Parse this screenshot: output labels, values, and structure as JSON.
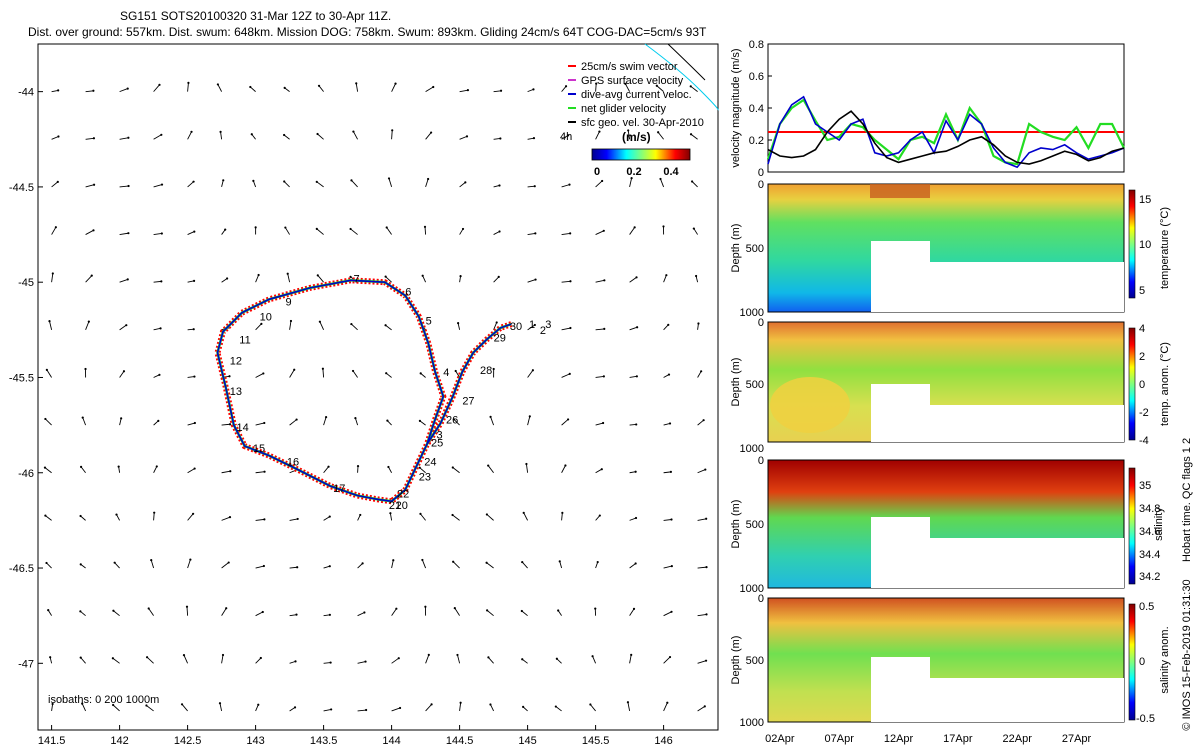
{
  "header": {
    "line1": "SG151 SOTS20100320 31-Mar 12Z to 30-Apr 11Z.",
    "line2": "Dist. over ground: 557km. Dist. swum: 648km. Mission DOG: 758km. Swum: 893km. Gliding 24cm/s 64T COG-DAC=5cm/s 93T"
  },
  "colors": {
    "swim": "#ff0000",
    "gps": "#cc33cc",
    "dac": "#0000cc",
    "net": "#22dd22",
    "geo": "#000000",
    "contour": "#00ccee",
    "redline": "#ff0000"
  },
  "chart_data": [
    {
      "type": "scatter",
      "name": "map",
      "xlim": [
        141.4,
        146.4
      ],
      "ylim": [
        -47.35,
        -43.75
      ],
      "x_ticks": [
        141.5,
        142,
        142.5,
        143,
        143.5,
        144,
        144.5,
        145,
        145.5,
        146
      ],
      "x_tick_labels": [
        "141.5",
        "142",
        "142.5",
        "143",
        "143.5",
        "144",
        "144.5",
        "145",
        "145.5",
        "146"
      ],
      "y_ticks": [
        -44,
        -44.5,
        -45,
        -45.5,
        -46,
        -46.5,
        -47
      ],
      "y_tick_labels": [
        "-44",
        "-44.5",
        "-45",
        "-45.5",
        "-46",
        "-46.5",
        "-47"
      ],
      "legend": [
        {
          "label": "25cm/s swim vector",
          "color": "#ff0000"
        },
        {
          "label": "GPS surface velocity",
          "color": "#cc33cc"
        },
        {
          "label": "dive-avg current veloc.",
          "color": "#0000cc"
        },
        {
          "label": "net glider velocity",
          "color": "#22dd22"
        },
        {
          "label": "sfc geo. vel. 30-Apr-2010",
          "color": "#000000"
        }
      ],
      "legend_extra": "4h",
      "colorbar": {
        "title": "(m/s)",
        "ticks": [
          "0",
          "0.2",
          "0.4"
        ],
        "range": [
          0,
          0.5
        ]
      },
      "isobath_label": "isobaths: 0   200  1000m",
      "track": [
        [
          144.88,
          -45.22
        ],
        [
          144.8,
          -45.24
        ],
        [
          144.7,
          -45.3
        ],
        [
          144.6,
          -45.37
        ],
        [
          144.52,
          -45.47
        ],
        [
          144.45,
          -45.6
        ],
        [
          144.36,
          -45.74
        ],
        [
          144.26,
          -45.85
        ],
        [
          144.18,
          -45.97
        ],
        [
          144.1,
          -46.09
        ],
        [
          144.0,
          -46.15
        ],
        [
          143.9,
          -46.14
        ],
        [
          143.75,
          -46.12
        ],
        [
          143.55,
          -46.07
        ],
        [
          143.3,
          -45.98
        ],
        [
          143.1,
          -45.91
        ],
        [
          142.92,
          -45.86
        ],
        [
          142.84,
          -45.75
        ],
        [
          142.78,
          -45.55
        ],
        [
          142.72,
          -45.37
        ],
        [
          142.76,
          -45.26
        ],
        [
          142.9,
          -45.16
        ],
        [
          143.1,
          -45.09
        ],
        [
          143.4,
          -45.03
        ],
        [
          143.7,
          -44.99
        ],
        [
          143.95,
          -45.0
        ],
        [
          144.1,
          -45.07
        ],
        [
          144.2,
          -45.18
        ],
        [
          144.27,
          -45.32
        ],
        [
          144.32,
          -45.47
        ],
        [
          144.38,
          -45.6
        ],
        [
          144.32,
          -45.72
        ],
        [
          144.26,
          -45.85
        ]
      ],
      "day_labels": [
        {
          "label": "1",
          "x": 145.01,
          "y": -45.22
        },
        {
          "label": "2",
          "x": 145.09,
          "y": -45.25
        },
        {
          "label": "3",
          "x": 145.13,
          "y": -45.22
        },
        {
          "label": "4",
          "x": 144.38,
          "y": -45.47
        },
        {
          "label": "5",
          "x": 144.25,
          "y": -45.2
        },
        {
          "label": "6",
          "x": 144.1,
          "y": -45.05
        },
        {
          "label": "7",
          "x": 143.72,
          "y": -44.98
        },
        {
          "label": "9",
          "x": 143.22,
          "y": -45.1
        },
        {
          "label": "10",
          "x": 143.03,
          "y": -45.18
        },
        {
          "label": "11",
          "x": 142.88,
          "y": -45.3
        },
        {
          "label": "12",
          "x": 142.81,
          "y": -45.41
        },
        {
          "label": "13",
          "x": 142.81,
          "y": -45.57
        },
        {
          "label": "14",
          "x": 142.86,
          "y": -45.76
        },
        {
          "label": "15",
          "x": 142.98,
          "y": -45.87
        },
        {
          "label": "16",
          "x": 143.23,
          "y": -45.94
        },
        {
          "label": "17",
          "x": 143.57,
          "y": -46.08
        },
        {
          "label": "20",
          "x": 144.03,
          "y": -46.17
        },
        {
          "label": "21",
          "x": 143.98,
          "y": -46.17
        },
        {
          "label": "22",
          "x": 144.04,
          "y": -46.11
        },
        {
          "label": "23",
          "x": 144.2,
          "y": -46.02
        },
        {
          "label": "24",
          "x": 144.24,
          "y": -45.94
        },
        {
          "label": "25",
          "x": 144.29,
          "y": -45.84
        },
        {
          "label": "3",
          "x": 144.33,
          "y": -45.8
        },
        {
          "label": "26",
          "x": 144.4,
          "y": -45.72
        },
        {
          "label": "27",
          "x": 144.52,
          "y": -45.62
        },
        {
          "label": "28",
          "x": 144.65,
          "y": -45.46
        },
        {
          "label": "29",
          "x": 144.75,
          "y": -45.29
        },
        {
          "label": "30",
          "x": 144.87,
          "y": -45.23
        }
      ]
    },
    {
      "type": "line",
      "name": "velocity",
      "ylabel": "velocity magnitude (m/s)",
      "xlim": [
        1,
        31
      ],
      "ylim": [
        0,
        0.8
      ],
      "y_ticks": [
        0,
        0.2,
        0.4,
        0.6,
        0.8
      ],
      "y_tick_labels": [
        "0",
        "0.2",
        "0.4",
        "0.6",
        "0.8"
      ],
      "red_line_value": 0.25,
      "series": [
        {
          "color": "#000000",
          "x": [
            1,
            2,
            3,
            4,
            5,
            6,
            7,
            8,
            9,
            10,
            11,
            12,
            13,
            14,
            15,
            16,
            17,
            18,
            19,
            20,
            21,
            22,
            23,
            24,
            25,
            26,
            27,
            28,
            29,
            30,
            31
          ],
          "y": [
            0.14,
            0.1,
            0.09,
            0.1,
            0.14,
            0.25,
            0.33,
            0.38,
            0.3,
            0.18,
            0.09,
            0.06,
            0.08,
            0.1,
            0.12,
            0.13,
            0.16,
            0.2,
            0.22,
            0.17,
            0.1,
            0.06,
            0.05,
            0.07,
            0.1,
            0.13,
            0.11,
            0.07,
            0.09,
            0.13,
            0.15
          ]
        },
        {
          "color": "#0000cc",
          "x": [
            1,
            2,
            3,
            4,
            5,
            6,
            7,
            8,
            9,
            10,
            11,
            12,
            13,
            14,
            15,
            16,
            17,
            18,
            19,
            20,
            21,
            22,
            23,
            24,
            25,
            26,
            27,
            28,
            29,
            30,
            31
          ],
          "y": [
            0.05,
            0.3,
            0.42,
            0.47,
            0.3,
            0.25,
            0.2,
            0.3,
            0.33,
            0.12,
            0.1,
            0.12,
            0.2,
            0.25,
            0.12,
            0.32,
            0.2,
            0.36,
            0.3,
            0.15,
            0.06,
            0.03,
            0.12,
            0.15,
            0.14,
            0.17,
            0.12,
            0.08,
            0.1,
            0.12,
            0.15
          ]
        },
        {
          "color": "#22dd22",
          "x": [
            1,
            2,
            3,
            4,
            5,
            6,
            7,
            8,
            9,
            10,
            11,
            12,
            13,
            14,
            15,
            16,
            17,
            18,
            19,
            20,
            21,
            22,
            23,
            24,
            25,
            26,
            27,
            28,
            29,
            30,
            31
          ],
          "y": [
            0.08,
            0.3,
            0.4,
            0.45,
            0.32,
            0.2,
            0.22,
            0.3,
            0.28,
            0.2,
            0.14,
            0.08,
            0.2,
            0.22,
            0.18,
            0.36,
            0.2,
            0.4,
            0.3,
            0.1,
            0.06,
            0.05,
            0.3,
            0.25,
            0.22,
            0.2,
            0.28,
            0.15,
            0.3,
            0.3,
            0.15
          ]
        }
      ]
    },
    {
      "type": "heatmap",
      "name": "temperature",
      "ylabel": "Depth (m)",
      "clabel": "temperature (°C)",
      "ylim": [
        0,
        1000
      ],
      "y_ticks": [
        "0",
        "500",
        "1000"
      ],
      "c_ticks": [
        "5",
        "10",
        "15"
      ],
      "crange": [
        4,
        16
      ]
    },
    {
      "type": "heatmap",
      "name": "temp-anomaly",
      "ylabel": "Depth (m)",
      "clabel": "temp. anom. (°C)",
      "ylim": [
        0,
        1000
      ],
      "y_ticks": [
        "0",
        "500",
        "1000"
      ],
      "c_ticks": [
        "4",
        "2",
        "0",
        "-2",
        "-4"
      ],
      "crange": [
        -4,
        4
      ]
    },
    {
      "type": "heatmap",
      "name": "salinity",
      "ylabel": "Depth (m)",
      "clabel": "salinity",
      "ylim": [
        0,
        1000
      ],
      "y_ticks": [
        "0",
        "500",
        "1000"
      ],
      "c_ticks": [
        "35",
        "34.8",
        "34.6",
        "34.4",
        "34.2"
      ],
      "crange": [
        34.1,
        35.1
      ]
    },
    {
      "type": "heatmap",
      "name": "salinity-anomaly",
      "ylabel": "Depth (m)",
      "clabel": "salinity anom.",
      "ylim": [
        0,
        1000
      ],
      "y_ticks": [
        "0",
        "500",
        "1000"
      ],
      "c_ticks": [
        "0.5",
        "0",
        "-0.5"
      ],
      "crange": [
        -0.5,
        0.5
      ]
    }
  ],
  "time_axis": {
    "labels": [
      "02Apr",
      "07Apr",
      "12Apr",
      "17Apr",
      "22Apr",
      "27Apr"
    ],
    "days": [
      2,
      7,
      12,
      17,
      22,
      27
    ]
  },
  "right_margin": {
    "qc_label": "Hobart time. QC flags 1  2",
    "copyright": "© IMOS 15-Feb-2019 01:31:30"
  }
}
